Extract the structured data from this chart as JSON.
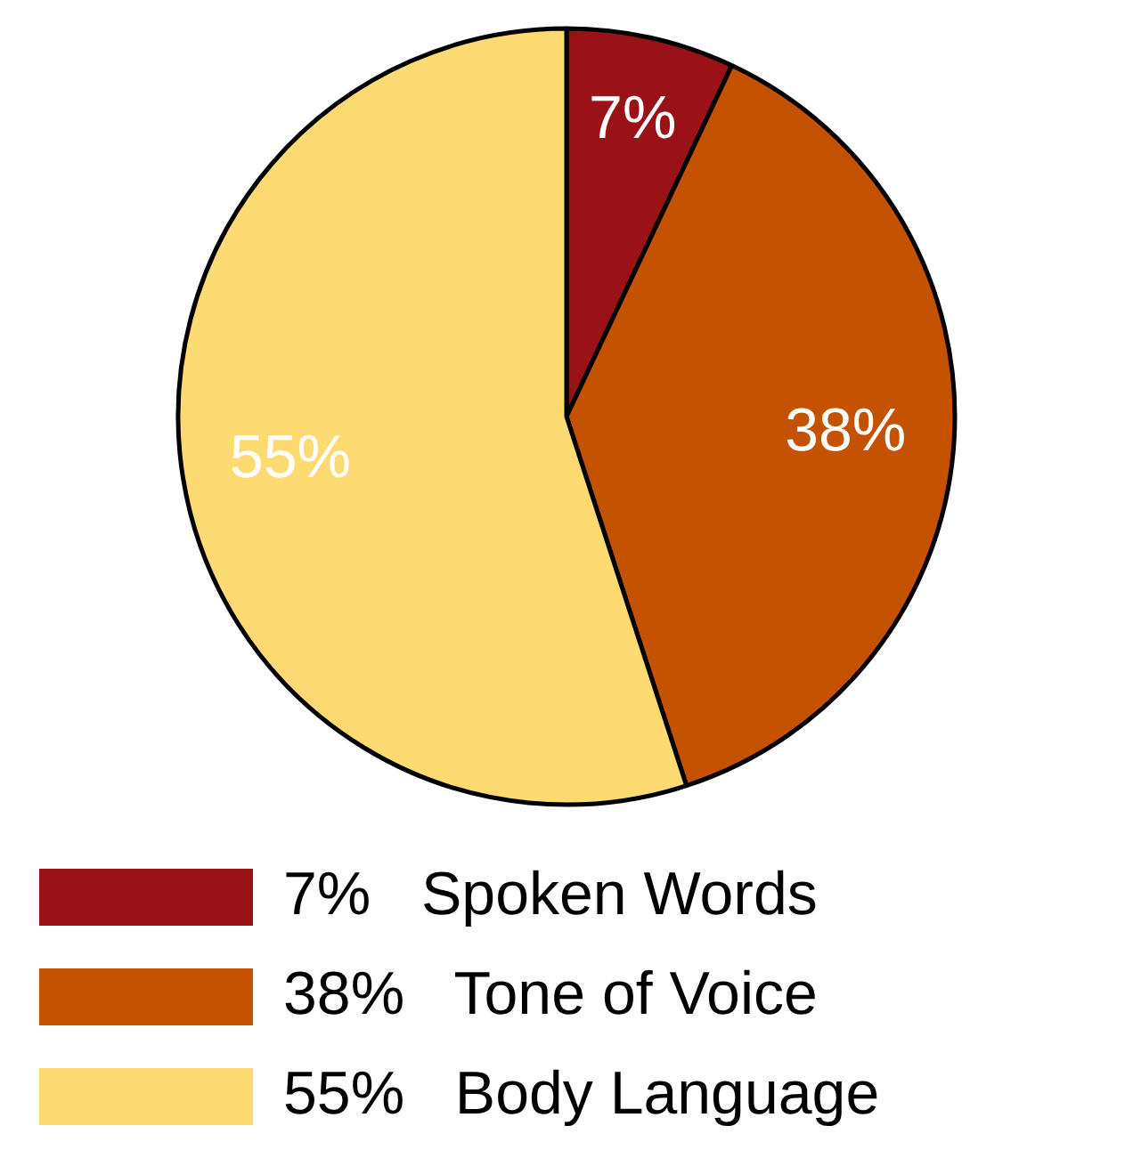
{
  "chart_data": {
    "type": "pie",
    "categories": [
      "Spoken Words",
      "Tone of Voice",
      "Body Language"
    ],
    "values": [
      7,
      38,
      55
    ],
    "value_labels": [
      "7%",
      "38%",
      "55%"
    ],
    "colors": [
      "#9b1118",
      "#c55200",
      "#fedb72"
    ],
    "legend": "bottom"
  }
}
